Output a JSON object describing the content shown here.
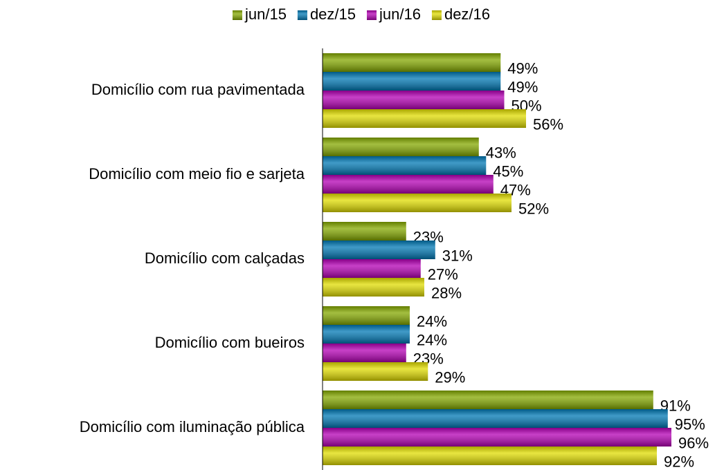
{
  "chart_data": {
    "type": "hbar",
    "categories": [
      "Domicílio com rua pavimentada",
      "Domicílio com meio fio e sarjeta",
      "Domicílio com calçadas",
      "Domicílio com bueiros",
      "Domicílio com iluminação pública"
    ],
    "series": [
      {
        "name": "jun/15",
        "color": "#84a800",
        "values": [
          49,
          43,
          23,
          24,
          91
        ],
        "value_labels": [
          "49%",
          "43%",
          "23%",
          "24%",
          "91%"
        ]
      },
      {
        "name": "dez/15",
        "color": "#0078b4",
        "values": [
          49,
          45,
          31,
          24,
          95
        ],
        "value_labels": [
          "49%",
          "45%",
          "31%",
          "24%",
          "95%"
        ]
      },
      {
        "name": "jun/16",
        "color": "#b400b4",
        "values": [
          50,
          47,
          27,
          23,
          96
        ],
        "value_labels": [
          "50%",
          "47%",
          "27%",
          "23%",
          "96%"
        ]
      },
      {
        "name": "dez/16",
        "color": "#e0dc00",
        "values": [
          56,
          52,
          28,
          29,
          92
        ],
        "value_labels": [
          "56%",
          "52%",
          "28%",
          "29%",
          "92%"
        ]
      }
    ],
    "xlim": [
      0,
      100
    ],
    "legend": "top"
  }
}
